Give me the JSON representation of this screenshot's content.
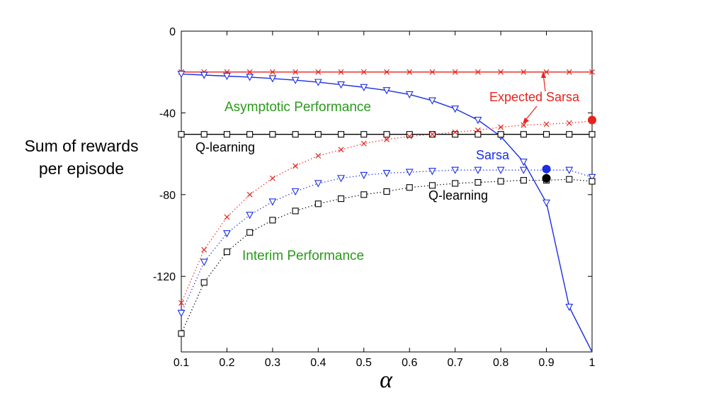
{
  "chart_data": {
    "type": "line",
    "ylabel_lines": [
      "Sum of rewards",
      "per episode"
    ],
    "xlabel": "α",
    "xlim": [
      0.1,
      1.0
    ],
    "ylim": [
      -157,
      0
    ],
    "xticks": [
      0.1,
      0.2,
      0.3,
      0.4,
      0.5,
      0.6,
      0.7,
      0.8,
      0.9,
      1
    ],
    "xtick_labels": [
      "0.1",
      "0.2",
      "0.3",
      "0.4",
      "0.5",
      "0.6",
      "0.7",
      "0.8",
      "0.9",
      "1"
    ],
    "yticks": [
      0,
      -40,
      -80,
      -120
    ],
    "ytick_labels": [
      "0",
      "-40",
      "-80",
      "-120"
    ],
    "grid": false,
    "colors": {
      "expected_sarsa": "#e8231c",
      "sarsa": "#1a2ee6",
      "qlearning": "#000000",
      "annotation": "#2a9a1a"
    },
    "x": [
      0.1,
      0.15,
      0.2,
      0.25,
      0.3,
      0.35,
      0.4,
      0.45,
      0.5,
      0.55,
      0.6,
      0.65,
      0.7,
      0.75,
      0.8,
      0.85,
      0.9,
      0.95,
      1.0
    ],
    "series": [
      {
        "key": "expected_sarsa_asymptotic",
        "color": "#e8231c",
        "marker": "x",
        "style": "solid",
        "values": [
          -20,
          -20,
          -20,
          -20,
          -20,
          -20,
          -20,
          -20,
          -20,
          -20,
          -20,
          -20,
          -20,
          -20,
          -20,
          -20,
          -20,
          -20,
          -20
        ]
      },
      {
        "key": "sarsa_asymptotic",
        "color": "#1a2ee6",
        "marker": "triangle",
        "style": "solid",
        "values": [
          -21,
          -21.5,
          -22,
          -22.5,
          -23.2,
          -24,
          -25,
          -26.2,
          -27.5,
          -29,
          -31,
          -34,
          -38,
          -43.5,
          -51.5,
          -64,
          -84,
          -135,
          -157
        ]
      },
      {
        "key": "qlearning_asymptotic",
        "color": "#000000",
        "marker": "square",
        "style": "solid",
        "values": [
          -50.5,
          -50.5,
          -50.5,
          -50.5,
          -50.5,
          -50.5,
          -50.5,
          -50.5,
          -50.5,
          -50.5,
          -50.5,
          -50.5,
          -50.5,
          -50.5,
          -50.5,
          -50.5,
          -50.5,
          -50.5,
          -50.5
        ]
      },
      {
        "key": "expected_sarsa_interim",
        "color": "#e8231c",
        "marker": "x",
        "style": "dotted",
        "values": [
          -133,
          -107,
          -91,
          -80,
          -72,
          -66,
          -61,
          -58,
          -55,
          -53,
          -51.5,
          -50.5,
          -49.5,
          -48.5,
          -47,
          -46,
          -45.5,
          -45,
          -44
        ]
      },
      {
        "key": "sarsa_interim",
        "color": "#1a2ee6",
        "marker": "triangle",
        "style": "dotted",
        "values": [
          -138,
          -113,
          -99,
          -90,
          -83.5,
          -78.5,
          -74.5,
          -72,
          -70.5,
          -69.5,
          -69,
          -68.5,
          -68,
          -68,
          -68,
          -68,
          -68,
          -68,
          -71.5
        ]
      },
      {
        "key": "qlearning_interim",
        "color": "#000000",
        "marker": "square",
        "style": "dotted",
        "values": [
          -148,
          -123,
          -108,
          -98.5,
          -92.5,
          -88,
          -84.5,
          -82,
          -80,
          -78.5,
          -76.5,
          -75.5,
          -74.5,
          -74,
          -73.5,
          -73,
          -73,
          -72.5,
          -73.5
        ]
      }
    ],
    "dots": [
      {
        "x": 1.0,
        "y": -43.5,
        "color": "#e8231c"
      },
      {
        "x": 0.9,
        "y": -67.5,
        "color": "#1a2ee6"
      },
      {
        "x": 0.9,
        "y": -72,
        "color": "#000000"
      }
    ],
    "annotations": {
      "asymptotic": "Asymptotic Performance",
      "interim": "Interim Performance",
      "expected_sarsa": "Expected Sarsa",
      "sarsa": "Sarsa",
      "qlearning_top": "Q-learning",
      "qlearning_bottom": "Q-learning"
    }
  }
}
